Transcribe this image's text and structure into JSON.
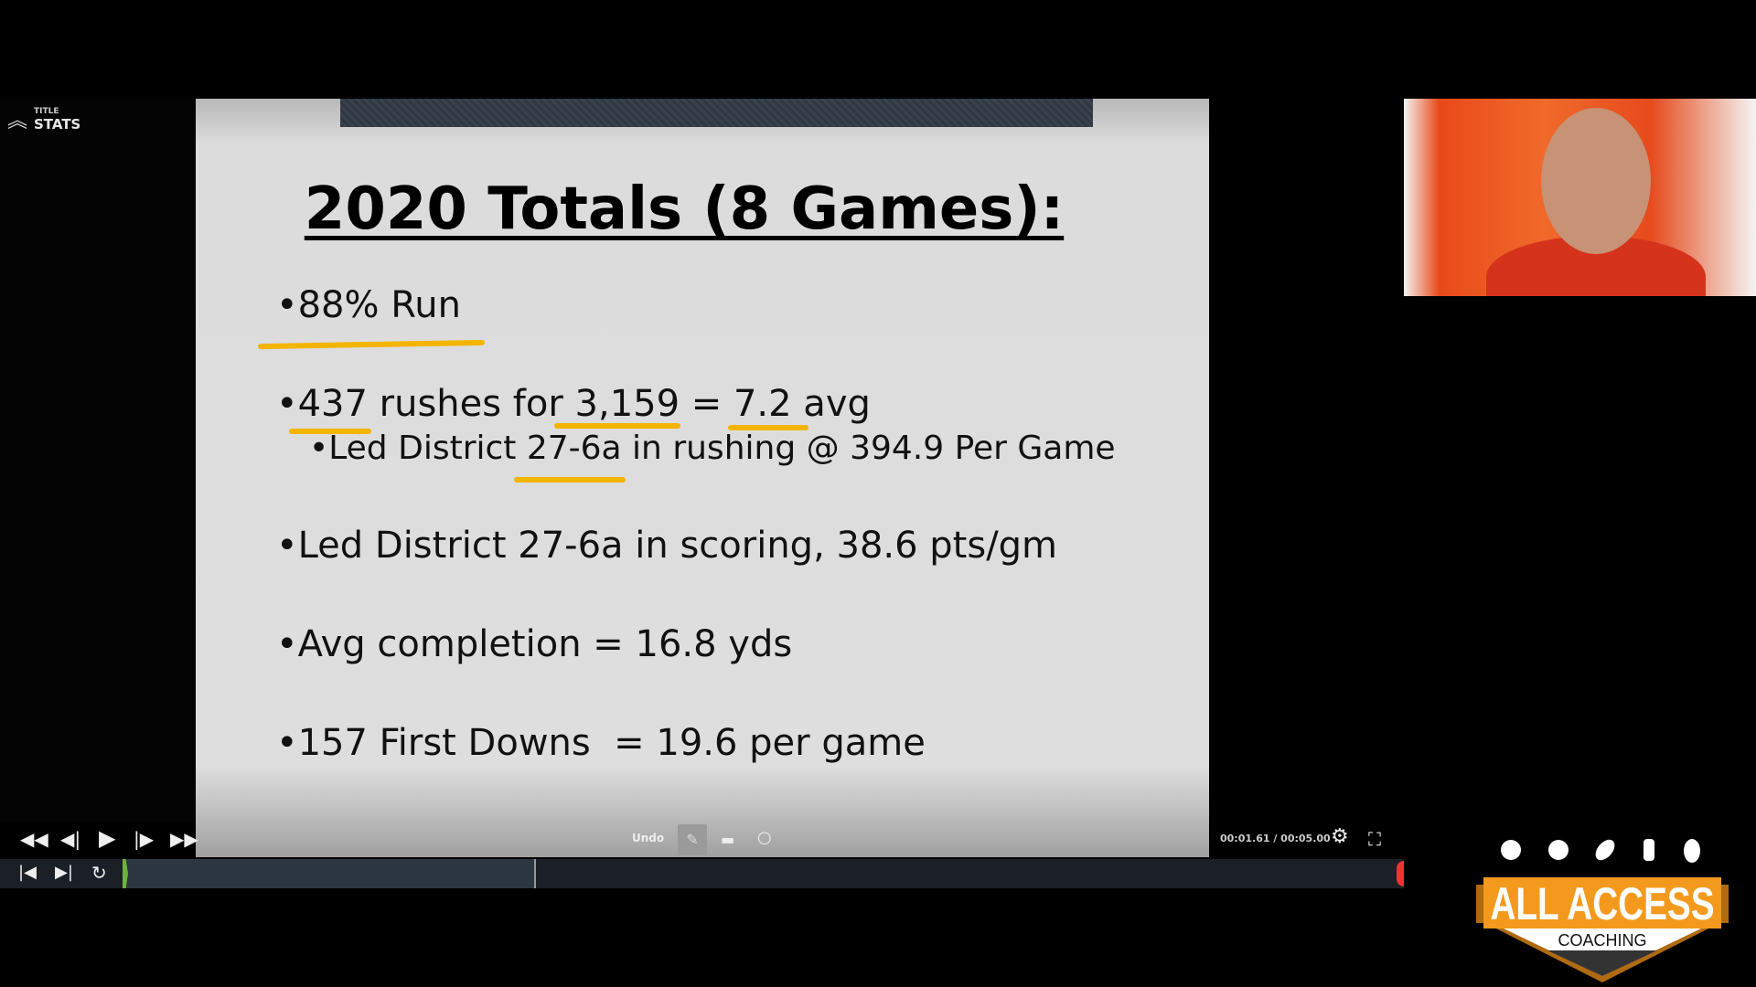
{
  "player": {
    "panel_label_small": "TITLE",
    "panel_label": "STATS",
    "undo_label": "Undo",
    "timecode": "00:01.61 / 00:05.00",
    "progress_fraction": 0.32
  },
  "slide": {
    "title": "2020 Totals (8 Games):",
    "bullets": [
      "•88% Run",
      "•437 rushes for 3,159 = 7.2 avg",
      "•Led District 27-6a in rushing @ 394.9 Per Game",
      "•Led District 27-6a in scoring, 38.6 pts/gm",
      "•Avg completion = 16.8 yds",
      "•157 First Downs  = 19.6 per game"
    ],
    "highlight_color": "#f4b400"
  },
  "logo": {
    "line1": "ALL ACCESS",
    "line2": "COACHING",
    "brand_color": "#f39a1e"
  }
}
